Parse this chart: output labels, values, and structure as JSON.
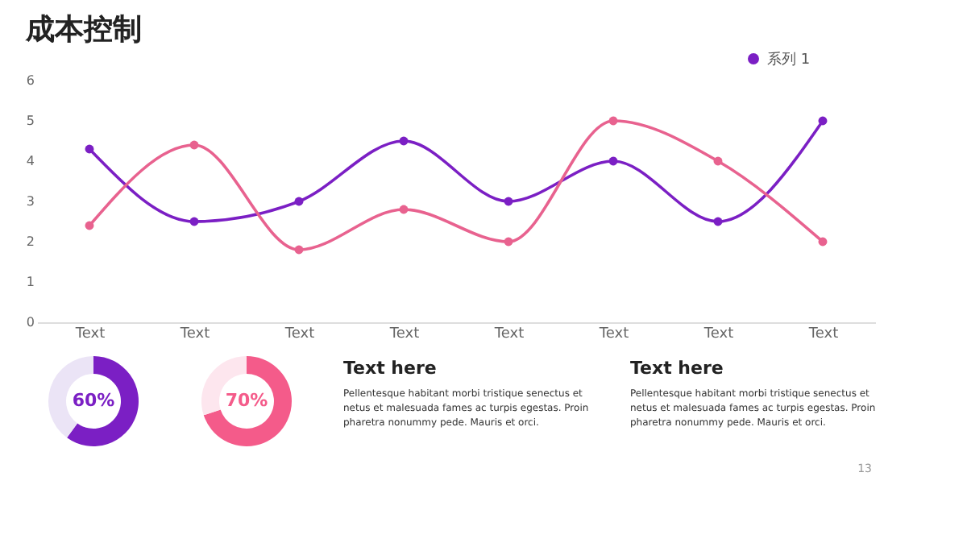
{
  "chart_data": [
    {
      "type": "line",
      "title": "成本控制",
      "categories": [
        "Text",
        "Text",
        "Text",
        "Text",
        "Text",
        "Text",
        "Text",
        "Text"
      ],
      "series": [
        {
          "name": "系列 1",
          "color": "#7b1fc4",
          "values": [
            4.3,
            2.5,
            3,
            4.5,
            3,
            4,
            2.5,
            5
          ]
        },
        {
          "color": "#e8628f",
          "values": [
            2.4,
            4.4,
            1.8,
            2.8,
            2,
            5,
            4,
            2
          ]
        }
      ],
      "ylim": [
        0,
        6
      ],
      "yticks": [
        0,
        1,
        2,
        3,
        4,
        5,
        6
      ],
      "grid": false,
      "legend": "top right",
      "marker": "circle",
      "line_style": "solid"
    },
    {
      "type": "donut",
      "categories": [
        null,
        null
      ],
      "values": [
        60,
        40
      ],
      "colors": [
        "#7b1fc4",
        "#ebe4f6"
      ],
      "value_labels": [
        "60%",
        null
      ]
    },
    {
      "type": "donut",
      "categories": [
        null,
        null
      ],
      "values": [
        70,
        30
      ],
      "colors": [
        "#f45b8a",
        "#fde6ee"
      ],
      "value_labels": [
        "70%",
        null
      ]
    },
    {
      "type": "other",
      "title": "Text here",
      "annotations": [
        "Pellentesque habitant morbi tristique senectus et netus et malesuada fames ac turpis egestas. Proin pharetra nonummy pede. Mauris et orci."
      ]
    },
    {
      "type": "other",
      "title": "Text here",
      "annotations": [
        "Pellentesque habitant morbi tristique senectus et netus et malesuada fames ac turpis egestas. Proin pharetra nonummy pede. Mauris et orci.",
        "13"
      ]
    }
  ]
}
